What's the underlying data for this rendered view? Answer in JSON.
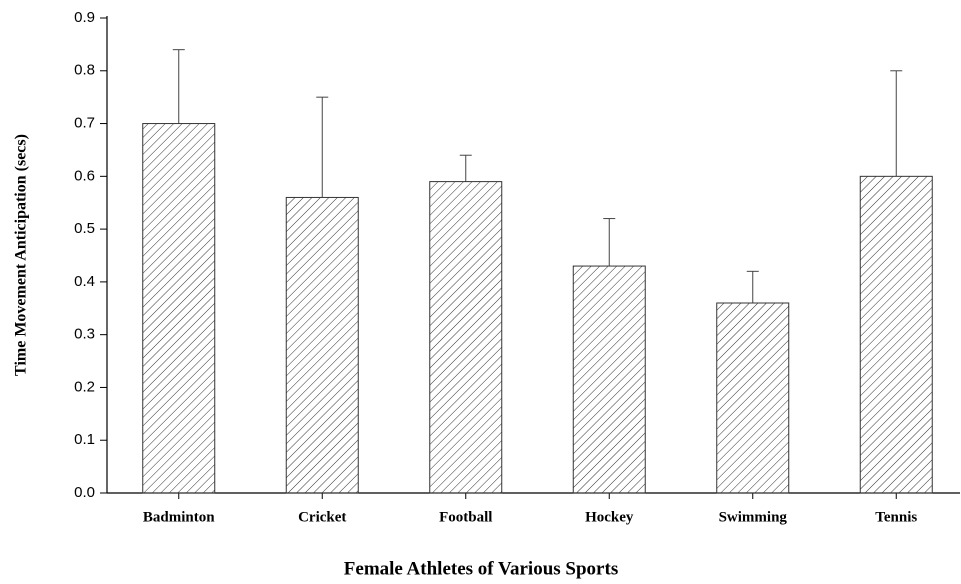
{
  "chart_data": {
    "type": "bar",
    "x_label": "Female Athletes of Various Sports",
    "y_label": "Time Movement Anticipation (secs)",
    "categories": [
      "Badminton",
      "Cricket",
      "Football",
      "Hockey",
      "Swimming",
      "Tennis"
    ],
    "values": [
      0.7,
      0.56,
      0.59,
      0.43,
      0.36,
      0.6
    ],
    "errors": [
      0.14,
      0.19,
      0.05,
      0.09,
      0.06,
      0.2
    ],
    "color": "#333333",
    "ylim": [
      0,
      0.9
    ],
    "yticks": [
      {
        "value": 0,
        "label": "0.0"
      },
      0.1,
      0.2,
      0.3,
      0.4,
      0.5,
      0.6,
      0.7,
      0.8,
      0.9
    ],
    "grid": false
  }
}
